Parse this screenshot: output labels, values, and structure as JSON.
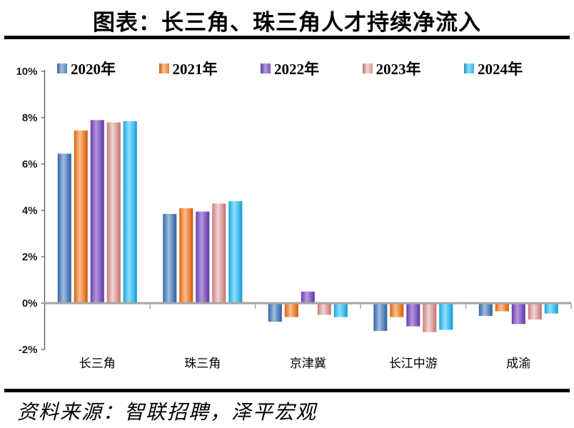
{
  "header": {
    "title": "图表：长三角、珠三角人才持续净流入"
  },
  "footer": {
    "source": "资料来源：智联招聘，泽平宏观"
  },
  "chart_data": {
    "type": "bar",
    "title": "图表：长三角、珠三角人才持续净流入",
    "categories": [
      "长三角",
      "珠三角",
      "京津冀",
      "长江中游",
      "成渝"
    ],
    "series": [
      {
        "name": "2020年",
        "color": "#4F81BD",
        "color_dark": "#38608F",
        "color_light": "#A3BEDC",
        "values": [
          6.45,
          3.85,
          -0.8,
          -1.2,
          -0.55
        ]
      },
      {
        "name": "2021年",
        "color": "#ED7D31",
        "color_dark": "#C05F14",
        "color_light": "#FAC090",
        "values": [
          7.45,
          4.1,
          -0.6,
          -0.6,
          -0.35
        ]
      },
      {
        "name": "2022年",
        "color": "#8257C4",
        "color_dark": "#5C3A9C",
        "color_light": "#B29AD8",
        "values": [
          7.9,
          3.95,
          0.5,
          -1.0,
          -0.9
        ]
      },
      {
        "name": "2023年",
        "color": "#D99694",
        "color_dark": "#BA7371",
        "color_light": "#EFD6D5",
        "values": [
          7.8,
          4.3,
          -0.5,
          -1.25,
          -0.7
        ]
      },
      {
        "name": "2024年",
        "color": "#36BDEF",
        "color_dark": "#1B93CE",
        "color_light": "#93DCF9",
        "values": [
          7.85,
          4.4,
          -0.6,
          -1.15,
          -0.45
        ]
      }
    ],
    "ylabel": "",
    "xlabel": "",
    "ylim": [
      -2,
      10
    ],
    "yticks": [
      {
        "v": 10,
        "label": "10%"
      },
      {
        "v": 8,
        "label": "8%"
      },
      {
        "v": 6,
        "label": "6%"
      },
      {
        "v": 4,
        "label": "4%"
      },
      {
        "v": 2,
        "label": "2%"
      },
      {
        "v": 0,
        "label": "0%"
      },
      {
        "v": -2,
        "label": "-2%"
      }
    ],
    "legend_position": "top",
    "grid": false,
    "axis_colors": {
      "zero_line": "#A6A6A6",
      "y_axis_line": "#595959",
      "tick_label": "#1A1A1A"
    }
  }
}
